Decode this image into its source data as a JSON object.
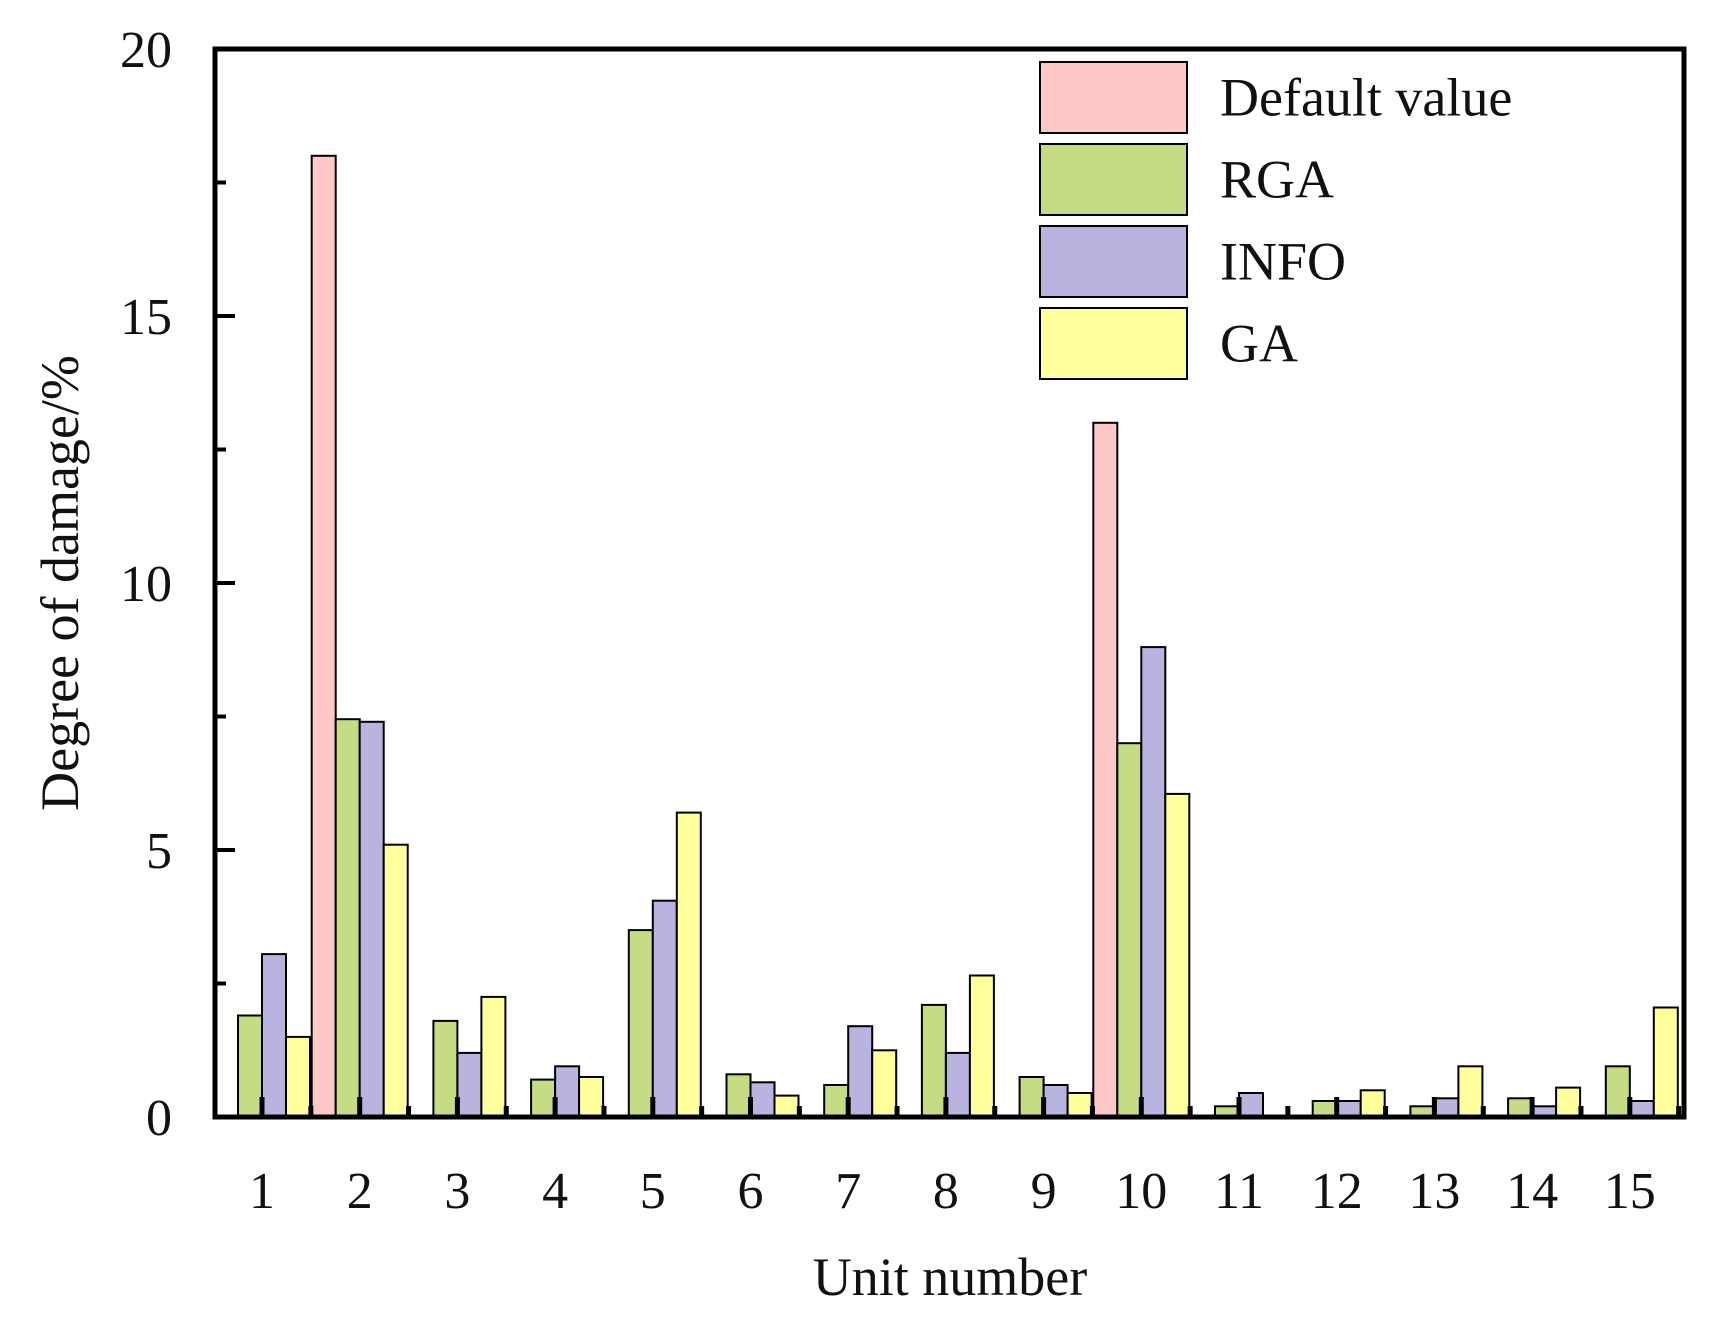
{
  "chart_data": {
    "type": "bar",
    "title": "",
    "xlabel": "Unit number",
    "ylabel": "Degree of damage/%",
    "ylim": [
      0,
      20
    ],
    "yticks": [
      "0",
      "5",
      "10",
      "15",
      "20"
    ],
    "categories": [
      "1",
      "2",
      "3",
      "4",
      "5",
      "6",
      "7",
      "8",
      "9",
      "10",
      "11",
      "12",
      "13",
      "14",
      "15"
    ],
    "series": [
      {
        "name": "Default value",
        "color": "#ffc8c8",
        "values": [
          0,
          18.0,
          0,
          0,
          0,
          0,
          0,
          0,
          0,
          13.0,
          0,
          0,
          0,
          0,
          0
        ]
      },
      {
        "name": "RGA",
        "color": "#c6dc84",
        "values": [
          1.9,
          7.45,
          1.8,
          0.7,
          3.5,
          0.8,
          0.6,
          2.1,
          0.75,
          7.0,
          0.2,
          0.3,
          0.2,
          0.35,
          0.95
        ]
      },
      {
        "name": "INFO",
        "color": "#b9b3e0",
        "values": [
          3.05,
          7.4,
          1.2,
          0.95,
          4.05,
          0.65,
          1.7,
          1.2,
          0.6,
          8.8,
          0.45,
          0.3,
          0.35,
          0.2,
          0.3
        ]
      },
      {
        "name": "GA",
        "color": "#ffff9c",
        "values": [
          1.5,
          5.1,
          2.25,
          0.75,
          5.7,
          0.4,
          1.25,
          2.65,
          0.45,
          6.05,
          0,
          0.5,
          0.95,
          0.55,
          2.05
        ]
      }
    ],
    "grid": false,
    "legend_position": "top-right"
  }
}
